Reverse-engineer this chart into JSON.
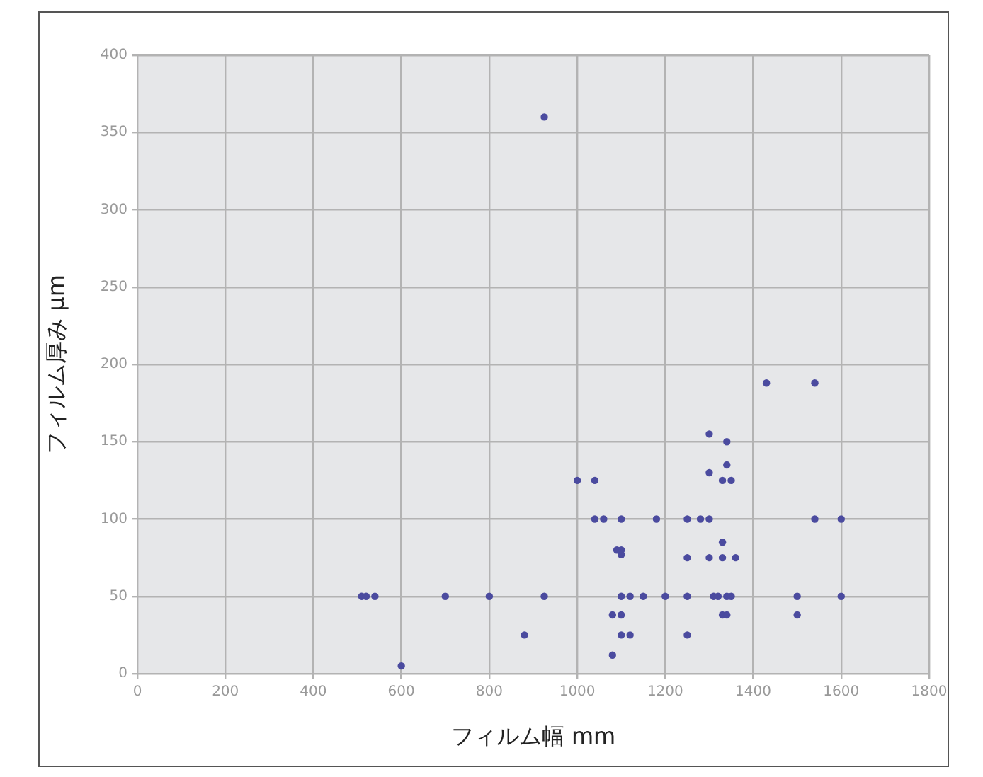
{
  "chart_data": {
    "type": "scatter",
    "xlabel": "フィルム幅 mm",
    "ylabel": "フィルム厚み μm",
    "xlim": [
      0,
      1800
    ],
    "ylim": [
      0,
      400
    ],
    "xticks": [
      0,
      200,
      400,
      600,
      800,
      1000,
      1200,
      1400,
      1600,
      1800
    ],
    "yticks": [
      0,
      50,
      100,
      150,
      200,
      250,
      300,
      350,
      400
    ],
    "grid": true,
    "marker": "circle",
    "series": [
      {
        "color": "#4b4b9f",
        "x": [
          925,
          1430,
          1540,
          1300,
          1340,
          1340,
          1300,
          1330,
          1350,
          1000,
          1040,
          1040,
          1060,
          1100,
          1180,
          1250,
          1280,
          1300,
          1540,
          1600,
          1330,
          1100,
          1100,
          1090,
          1250,
          1300,
          1330,
          1360,
          925,
          1100,
          1120,
          1150,
          1200,
          1250,
          1310,
          1320,
          1340,
          1350,
          1500,
          1600,
          1080,
          1100,
          1330,
          1340,
          1100,
          1120,
          1250,
          1500,
          1080,
          510,
          520,
          540,
          600,
          700,
          800,
          880
        ],
        "values": [
          360,
          188,
          188,
          155,
          150,
          135,
          130,
          125,
          125,
          125,
          125,
          100,
          100,
          100,
          100,
          100,
          100,
          100,
          100,
          100,
          85,
          80,
          77,
          80,
          75,
          75,
          75,
          75,
          50,
          50,
          50,
          50,
          50,
          50,
          50,
          50,
          50,
          50,
          50,
          50,
          38,
          38,
          38,
          38,
          25,
          25,
          25,
          38,
          12,
          50,
          50,
          50,
          5,
          50,
          50,
          25
        ]
      }
    ]
  }
}
